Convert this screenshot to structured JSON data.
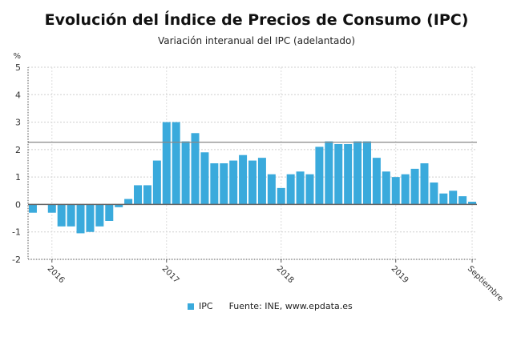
{
  "chart_data": {
    "type": "bar",
    "title": "Evolución del Índice de Precios de Consumo (IPC)",
    "subtitle": "Variación interanual del IPC (adelantado)",
    "ylabel": "%",
    "ylim": [
      -2,
      5
    ],
    "yticks": [
      5,
      4,
      3,
      2,
      1,
      0,
      -1,
      -2
    ],
    "xtick_labels": [
      {
        "label": "2016",
        "index": 2
      },
      {
        "label": "2017",
        "index": 14
      },
      {
        "label": "2018",
        "index": 26
      },
      {
        "label": "2019",
        "index": 38
      },
      {
        "label": "Septiembre",
        "index": 46
      }
    ],
    "grid": true,
    "reference_line": 2.27,
    "color": "#3aaadc",
    "categories": [
      "2015-11",
      "2015-12",
      "2016-01",
      "2016-02",
      "2016-03",
      "2016-04",
      "2016-05",
      "2016-06",
      "2016-07",
      "2016-08",
      "2016-09",
      "2016-10",
      "2016-11",
      "2016-12",
      "2017-01",
      "2017-02",
      "2017-03",
      "2017-04",
      "2017-05",
      "2017-06",
      "2017-07",
      "2017-08",
      "2017-09",
      "2017-10",
      "2017-11",
      "2017-12",
      "2018-01",
      "2018-02",
      "2018-03",
      "2018-04",
      "2018-05",
      "2018-06",
      "2018-07",
      "2018-08",
      "2018-09",
      "2018-10",
      "2018-11",
      "2018-12",
      "2019-01",
      "2019-02",
      "2019-03",
      "2019-04",
      "2019-05",
      "2019-06",
      "2019-07",
      "2019-08",
      "2019-09"
    ],
    "values": [
      -0.3,
      0.0,
      -0.3,
      -0.8,
      -0.8,
      -1.05,
      -1.0,
      -0.8,
      -0.6,
      -0.1,
      0.2,
      0.7,
      0.7,
      1.6,
      3.0,
      3.0,
      2.3,
      2.6,
      1.9,
      1.5,
      1.5,
      1.6,
      1.8,
      1.6,
      1.7,
      1.1,
      0.6,
      1.1,
      1.2,
      1.1,
      2.1,
      2.3,
      2.2,
      2.2,
      2.3,
      2.3,
      1.7,
      1.2,
      1.0,
      1.1,
      1.3,
      1.5,
      0.8,
      0.4,
      0.5,
      0.3,
      0.1
    ],
    "legend": {
      "position": "bottom",
      "entries": [
        "IPC"
      ]
    },
    "source": "Fuente: INE, www.epdata.es"
  }
}
